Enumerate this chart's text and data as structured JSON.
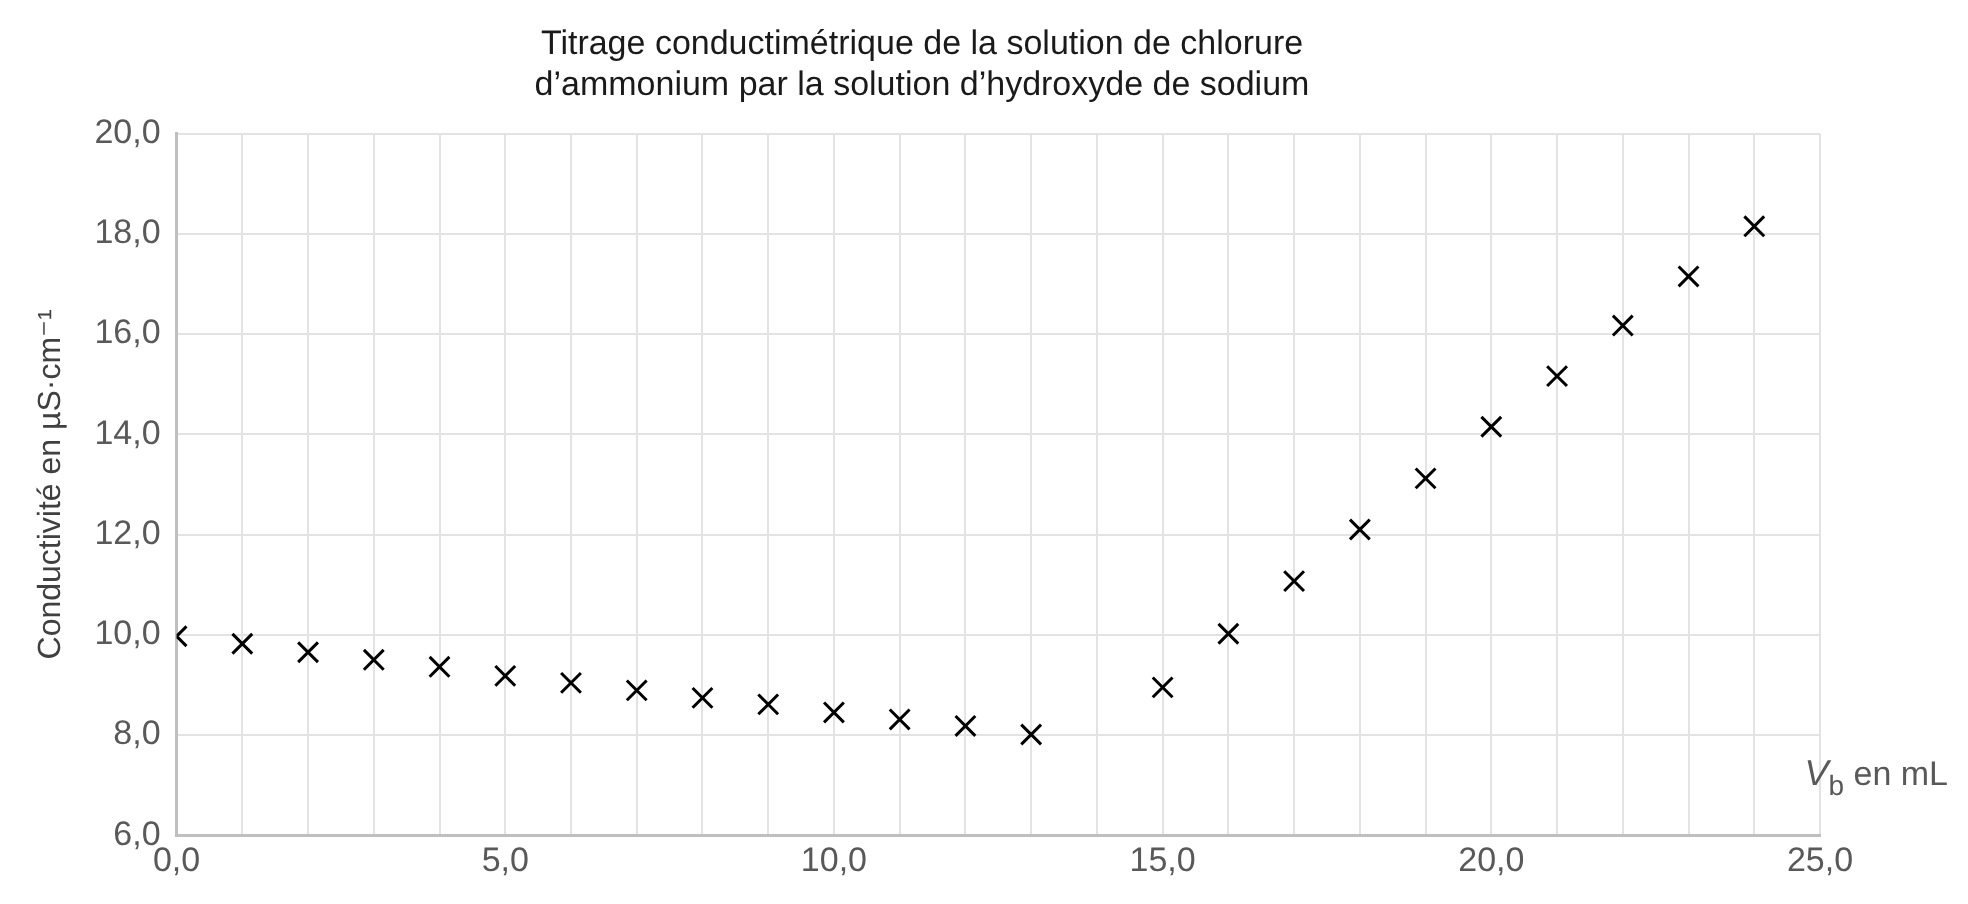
{
  "chart_data": {
    "type": "scatter",
    "title": "Titrage conductimétrique de la solution de chlorure\nd’ammonium par la solution d’hydroxyde de sodium",
    "xlabel": "V$_{b}$ en mL",
    "ylabel": "Conductivité en µS·cm⁻¹",
    "x": [
      0,
      1,
      2,
      3,
      4,
      5,
      6,
      7,
      8,
      9,
      10,
      11,
      12,
      13,
      15,
      16,
      17,
      18,
      19,
      20,
      21,
      22,
      23,
      24
    ],
    "series": [
      {
        "color": "#000000",
        "values": [
          9.97,
          9.82,
          9.65,
          9.5,
          9.36,
          9.18,
          9.04,
          8.89,
          8.74,
          8.61,
          8.45,
          8.31,
          8.18,
          8.01,
          8.95,
          10.02,
          11.07,
          12.1,
          13.12,
          14.15,
          15.16,
          16.17,
          17.15,
          18.15
        ]
      }
    ],
    "xlim": [
      0,
      25
    ],
    "xticks": [
      {
        "value": 0,
        "label": "0,0"
      },
      {
        "value": 1,
        "label": null
      },
      {
        "value": 2,
        "label": null
      },
      {
        "value": 3,
        "label": null
      },
      {
        "value": 4,
        "label": null
      },
      {
        "value": 5,
        "label": "5,0"
      },
      {
        "value": 6,
        "label": null
      },
      {
        "value": 7,
        "label": null
      },
      {
        "value": 8,
        "label": null
      },
      {
        "value": 9,
        "label": null
      },
      {
        "value": 10,
        "label": "10,0"
      },
      {
        "value": 11,
        "label": null
      },
      {
        "value": 12,
        "label": null
      },
      {
        "value": 13,
        "label": null
      },
      {
        "value": 14,
        "label": null
      },
      {
        "value": 15,
        "label": "15,0"
      },
      {
        "value": 16,
        "label": null
      },
      {
        "value": 17,
        "label": null
      },
      {
        "value": 18,
        "label": null
      },
      {
        "value": 19,
        "label": null
      },
      {
        "value": 20,
        "label": "20,0"
      },
      {
        "value": 21,
        "label": null
      },
      {
        "value": 22,
        "label": null
      },
      {
        "value": 23,
        "label": null
      },
      {
        "value": 24,
        "label": null
      },
      {
        "value": 25,
        "label": "25,0"
      }
    ],
    "ylim": [
      6,
      20
    ],
    "yticks": [
      {
        "value": 6,
        "label": "6,0"
      },
      {
        "value": 8,
        "label": "8,0"
      },
      {
        "value": 10,
        "label": "10,0"
      },
      {
        "value": 12,
        "label": "12,0"
      },
      {
        "value": 14,
        "label": "14,0"
      },
      {
        "value": 16,
        "label": "16,0"
      },
      {
        "value": 18,
        "label": "18,0"
      },
      {
        "value": 20,
        "label": "20,0"
      }
    ],
    "grid": true,
    "legend": false,
    "marker": "cross"
  }
}
